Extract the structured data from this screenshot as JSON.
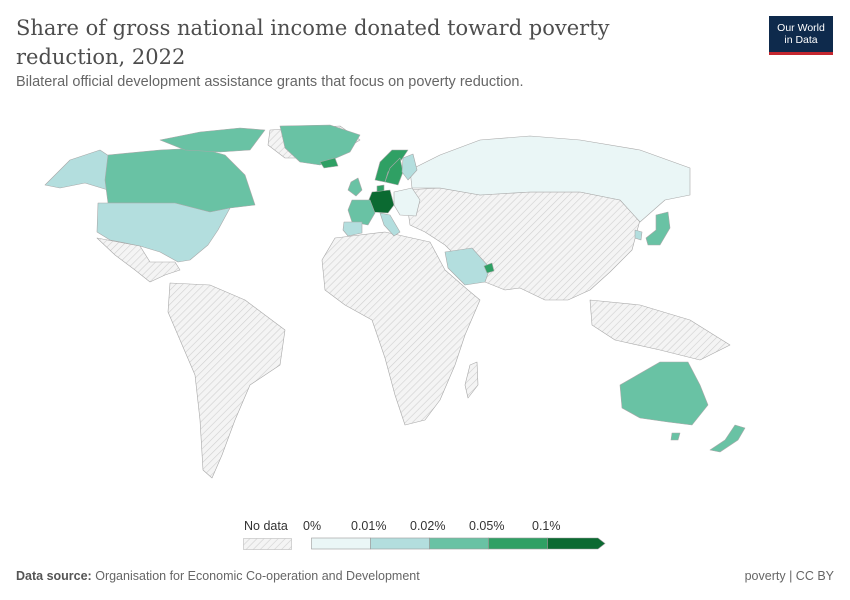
{
  "header": {
    "title": "Share of gross national income donated toward poverty reduction, 2022",
    "subtitle": "Bilateral official development assistance grants that focus on poverty reduction."
  },
  "logo": {
    "line1": "Our World",
    "line2": "in Data"
  },
  "legend": {
    "no_data_label": "No data",
    "bins": [
      "0%",
      "0.01%",
      "0.02%",
      "0.05%",
      "0.1%"
    ],
    "colors": [
      "#eaf6f6",
      "#b3dede",
      "#69c2a4",
      "#2fa064",
      "#0b6a31"
    ],
    "no_data_color": "#f2f2f2"
  },
  "footer": {
    "source_label": "Data source:",
    "source_text": "Organisation for Economic Co-operation and Development",
    "right_text": "poverty | CC BY"
  },
  "map_data": {
    "metric": "Share of gross national income donated toward poverty reduction",
    "year": 2022,
    "countries": [
      {
        "name": "Canada",
        "bin": "0.02%–0.05%"
      },
      {
        "name": "United States",
        "bin": "0.01%–0.02%"
      },
      {
        "name": "Greenland",
        "bin": "0.02%–0.05%"
      },
      {
        "name": "Alaska (United States)",
        "bin": "0.01%–0.02%"
      },
      {
        "name": "Iceland",
        "bin": "0.05%–0.1%"
      },
      {
        "name": "Norway",
        "bin": "0.05%–0.1%"
      },
      {
        "name": "Sweden",
        "bin": "0.05%–0.1%"
      },
      {
        "name": "Finland",
        "bin": "0.01%–0.02%"
      },
      {
        "name": "Denmark",
        "bin": "0.05%–0.1%"
      },
      {
        "name": "Germany",
        "bin": ">0.1%"
      },
      {
        "name": "France",
        "bin": "0.02%–0.05%"
      },
      {
        "name": "Spain",
        "bin": "0.01%–0.02%"
      },
      {
        "name": "United Kingdom",
        "bin": "0.02%–0.05%"
      },
      {
        "name": "Ireland",
        "bin": "0.01%–0.02%"
      },
      {
        "name": "Italy",
        "bin": "0.01%–0.02%"
      },
      {
        "name": "Russia",
        "bin": "0%–0.01%"
      },
      {
        "name": "Saudi Arabia",
        "bin": "0.01%–0.02%"
      },
      {
        "name": "United Arab Emirates",
        "bin": "0.05%–0.1%"
      },
      {
        "name": "Japan",
        "bin": "0.02%–0.05%"
      },
      {
        "name": "South Korea",
        "bin": "0.01%–0.02%"
      },
      {
        "name": "Australia",
        "bin": "0.02%–0.05%"
      },
      {
        "name": "New Zealand",
        "bin": "0.02%–0.05%"
      }
    ]
  }
}
